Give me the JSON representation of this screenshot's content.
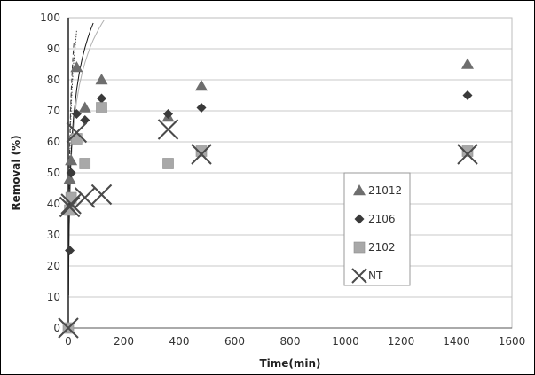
{
  "chart_data": {
    "type": "scatter",
    "title": "",
    "xlabel": "Time(min)",
    "ylabel": "Removal (%)",
    "xlim": [
      0,
      1600
    ],
    "ylim": [
      0,
      100
    ],
    "x_ticks": [
      "0",
      "200",
      "400",
      "600",
      "800",
      "1000",
      "1200",
      "1400",
      "1600"
    ],
    "y_ticks": [
      "0",
      "10",
      "20",
      "30",
      "40",
      "50",
      "60",
      "70",
      "80",
      "90",
      "100"
    ],
    "grid": "horizontal",
    "legend_position": "center-right",
    "series": [
      {
        "name": "21012",
        "marker": "triangle",
        "color": "#6e6e6e",
        "points": [
          [
            0,
            0
          ],
          [
            5,
            48
          ],
          [
            10,
            54
          ],
          [
            30,
            84
          ],
          [
            60,
            71
          ],
          [
            120,
            80
          ],
          [
            360,
            68
          ],
          [
            480,
            78
          ],
          [
            1440,
            85
          ]
        ]
      },
      {
        "name": "2106",
        "marker": "diamond",
        "color": "#3a3a3a",
        "points": [
          [
            0,
            0
          ],
          [
            5,
            25
          ],
          [
            10,
            50
          ],
          [
            30,
            69
          ],
          [
            60,
            67
          ],
          [
            120,
            74
          ],
          [
            360,
            69
          ],
          [
            480,
            71
          ],
          [
            1440,
            75
          ]
        ]
      },
      {
        "name": "2102",
        "marker": "square",
        "color": "#a8a8a8",
        "points": [
          [
            0,
            0
          ],
          [
            5,
            38
          ],
          [
            10,
            42
          ],
          [
            30,
            61
          ],
          [
            60,
            53
          ],
          [
            120,
            71
          ],
          [
            360,
            53
          ],
          [
            480,
            57
          ],
          [
            1440,
            57
          ]
        ]
      },
      {
        "name": "NT",
        "marker": "x",
        "color": "#4a4a4a",
        "points": [
          [
            0,
            0
          ],
          [
            5,
            39
          ],
          [
            10,
            40
          ],
          [
            30,
            63
          ],
          [
            60,
            42
          ],
          [
            120,
            43
          ],
          [
            360,
            64
          ],
          [
            480,
            56
          ],
          [
            1440,
            56
          ]
        ]
      }
    ],
    "trendlines": [
      {
        "series": "21012",
        "style": "dashed",
        "color": "#333333",
        "a": 24.1,
        "b": 19.54
      },
      {
        "series": "2106",
        "style": "dotted",
        "color": "#444444",
        "a": 23.3,
        "b": 16.58
      },
      {
        "series": "2102",
        "style": "solid",
        "color": "#b0b0b0",
        "a": 17.9,
        "b": 12.27
      },
      {
        "series": "NT",
        "style": "solid",
        "color": "#111111",
        "a": 19.5,
        "b": 10.55
      }
    ]
  }
}
